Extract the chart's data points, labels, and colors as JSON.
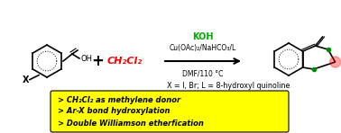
{
  "bg_color": "#ffffff",
  "arrow_color": "#000000",
  "koh_color": "#00aa00",
  "ch2cl2_color": "#ff0000",
  "highlight_bg": "#ffff00",
  "highlight_border": "#cccc00",
  "reactant_structure_color": "#000000",
  "product_o_color": "#ff0000",
  "product_o_ring_color": "#008800",
  "line1_above": "KOH",
  "line2_above": "Cu(OAc)₂/NaHCO₃/L",
  "line3_below": "DMF/110 °C",
  "xequal": "X = I, Br; L = 8-hydroxyl quinoline",
  "bullet1": "> CH₂Cl₂ as methylene donor",
  "bullet2": "> Ar-X bond hydroxylation",
  "bullet3": "> Double Williamson etherfication",
  "plus_sign": "+",
  "ch2cl2_label": "CH₂Cl₂"
}
